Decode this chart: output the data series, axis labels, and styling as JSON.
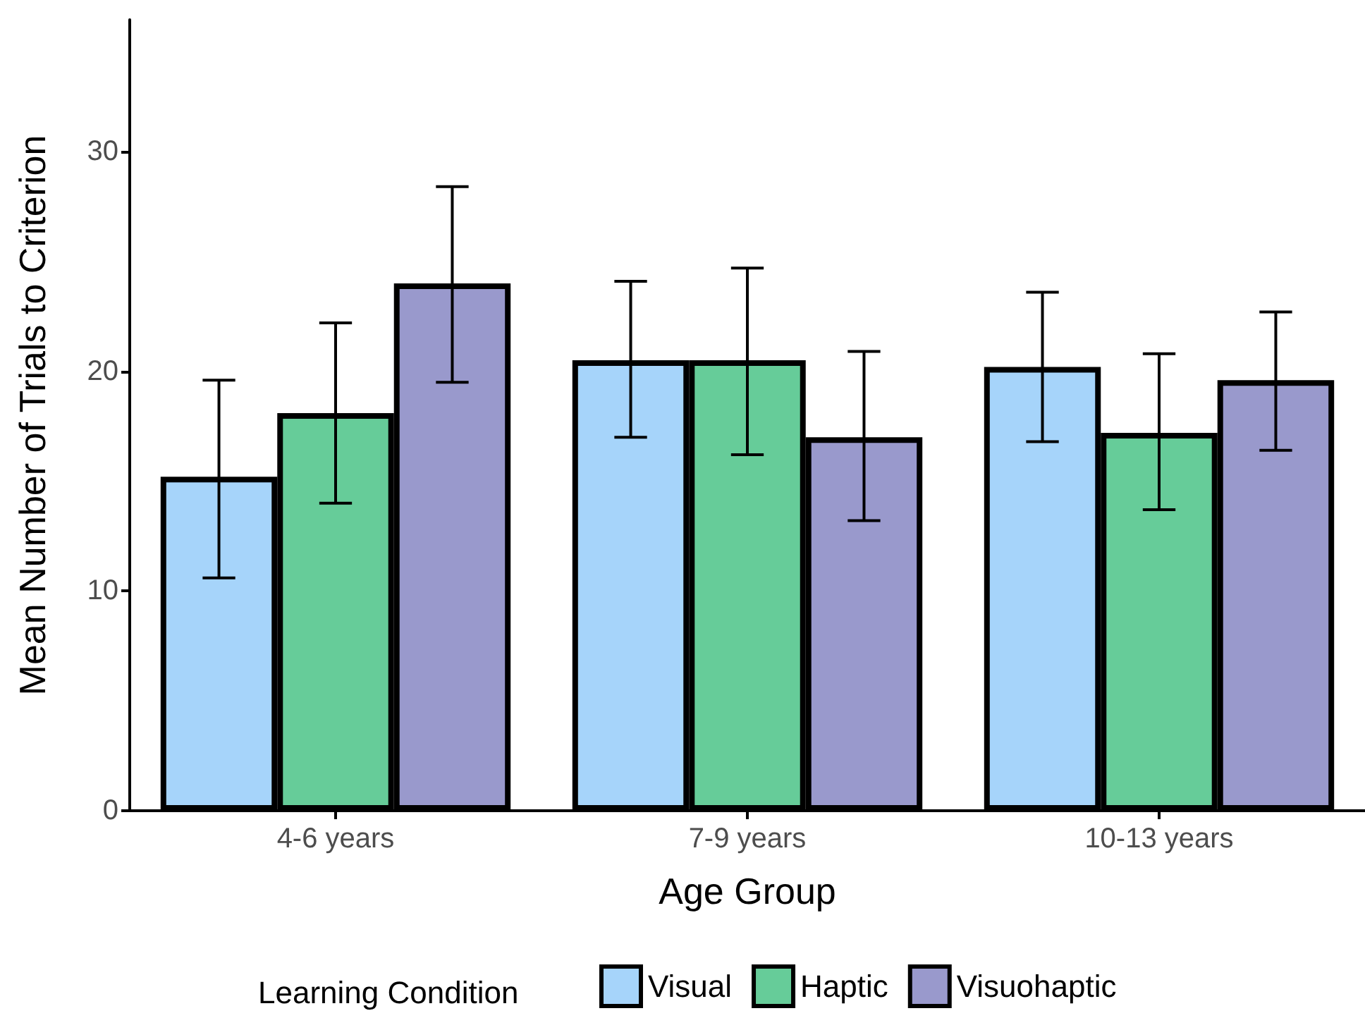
{
  "chart_data": {
    "type": "bar",
    "xlabel": "Age Group",
    "ylabel": "Mean Number of Trials to Criterion",
    "legend_title": "Learning Condition",
    "categories": [
      "4-6 years",
      "7-9 years",
      "10-13 years"
    ],
    "series": [
      {
        "name": "Visual",
        "color": "#a6d4fa",
        "values": [
          15.2,
          20.5,
          20.2
        ],
        "errors": [
          [
            10.6,
            19.6
          ],
          [
            17.0,
            24.1
          ],
          [
            16.8,
            23.6
          ]
        ]
      },
      {
        "name": "Haptic",
        "color": "#66cc99",
        "values": [
          18.1,
          20.5,
          17.2
        ],
        "errors": [
          [
            14.0,
            22.2
          ],
          [
            16.2,
            24.7
          ],
          [
            13.7,
            20.8
          ]
        ]
      },
      {
        "name": "Visuohaptic",
        "color": "#9999cc",
        "values": [
          24.0,
          17.0,
          19.6
        ],
        "errors": [
          [
            19.5,
            28.4
          ],
          [
            13.2,
            20.9
          ],
          [
            16.4,
            22.7
          ]
        ]
      }
    ],
    "ylim": [
      0,
      36
    ],
    "yticks": [
      0,
      10,
      20,
      30
    ],
    "grid": false,
    "legend": "bottom"
  }
}
